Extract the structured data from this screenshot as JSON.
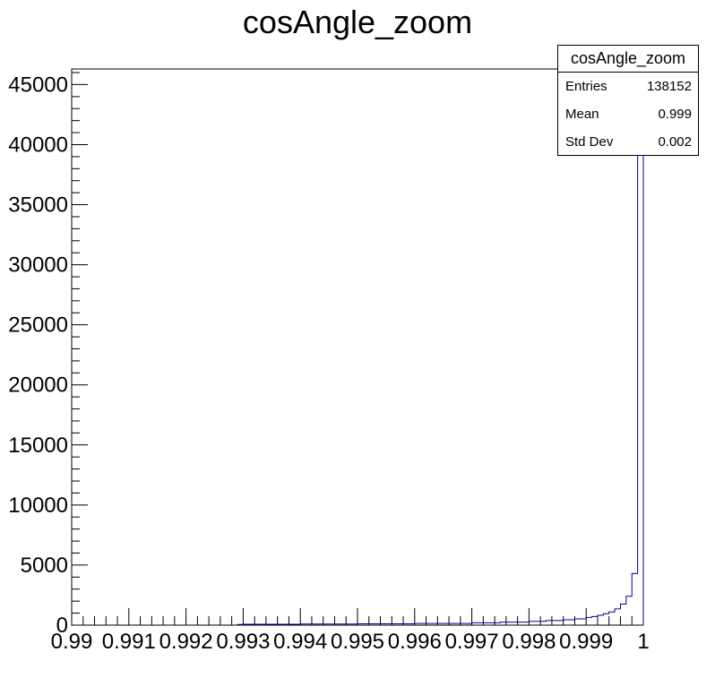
{
  "chart_data": {
    "type": "histogram",
    "title": "cosAngle_zoom",
    "xlim": [
      0.99,
      1.0
    ],
    "ylim": [
      0,
      46300
    ],
    "bin_width": 0.0001,
    "x_ticks": [
      0.99,
      0.991,
      0.992,
      0.993,
      0.994,
      0.995,
      0.996,
      0.997,
      0.998,
      0.999,
      1
    ],
    "x_tick_labels": [
      "0.99",
      "0.991",
      "0.992",
      "0.993",
      "0.994",
      "0.995",
      "0.996",
      "0.997",
      "0.998",
      "0.999",
      "1"
    ],
    "y_ticks": [
      0,
      5000,
      10000,
      15000,
      20000,
      25000,
      30000,
      35000,
      40000,
      45000
    ],
    "y_tick_labels": [
      "0",
      "5000",
      "10000",
      "15000",
      "20000",
      "25000",
      "30000",
      "35000",
      "40000",
      "45000"
    ],
    "bins": [
      {
        "x": 0.9929,
        "y": 60
      },
      {
        "x": 0.993,
        "y": 70
      },
      {
        "x": 0.994,
        "y": 90
      },
      {
        "x": 0.995,
        "y": 110
      },
      {
        "x": 0.996,
        "y": 140
      },
      {
        "x": 0.997,
        "y": 200
      },
      {
        "x": 0.9975,
        "y": 250
      },
      {
        "x": 0.998,
        "y": 320
      },
      {
        "x": 0.9983,
        "y": 380
      },
      {
        "x": 0.9986,
        "y": 450
      },
      {
        "x": 0.9988,
        "y": 520
      },
      {
        "x": 0.999,
        "y": 640
      },
      {
        "x": 0.9991,
        "y": 720
      },
      {
        "x": 0.9992,
        "y": 820
      },
      {
        "x": 0.9993,
        "y": 950
      },
      {
        "x": 0.9994,
        "y": 1100
      },
      {
        "x": 0.9995,
        "y": 1350
      },
      {
        "x": 0.9996,
        "y": 1750
      },
      {
        "x": 0.9997,
        "y": 2400
      },
      {
        "x": 0.9998,
        "y": 4300
      },
      {
        "x": 0.9999,
        "y": 40000
      }
    ],
    "line_color": "#000099",
    "stats": {
      "title": "cosAngle_zoom",
      "rows": [
        {
          "label": "Entries",
          "value": "138152"
        },
        {
          "label": "Mean",
          "value": "0.999"
        },
        {
          "label": "Std Dev",
          "value": "0.002"
        }
      ]
    }
  }
}
